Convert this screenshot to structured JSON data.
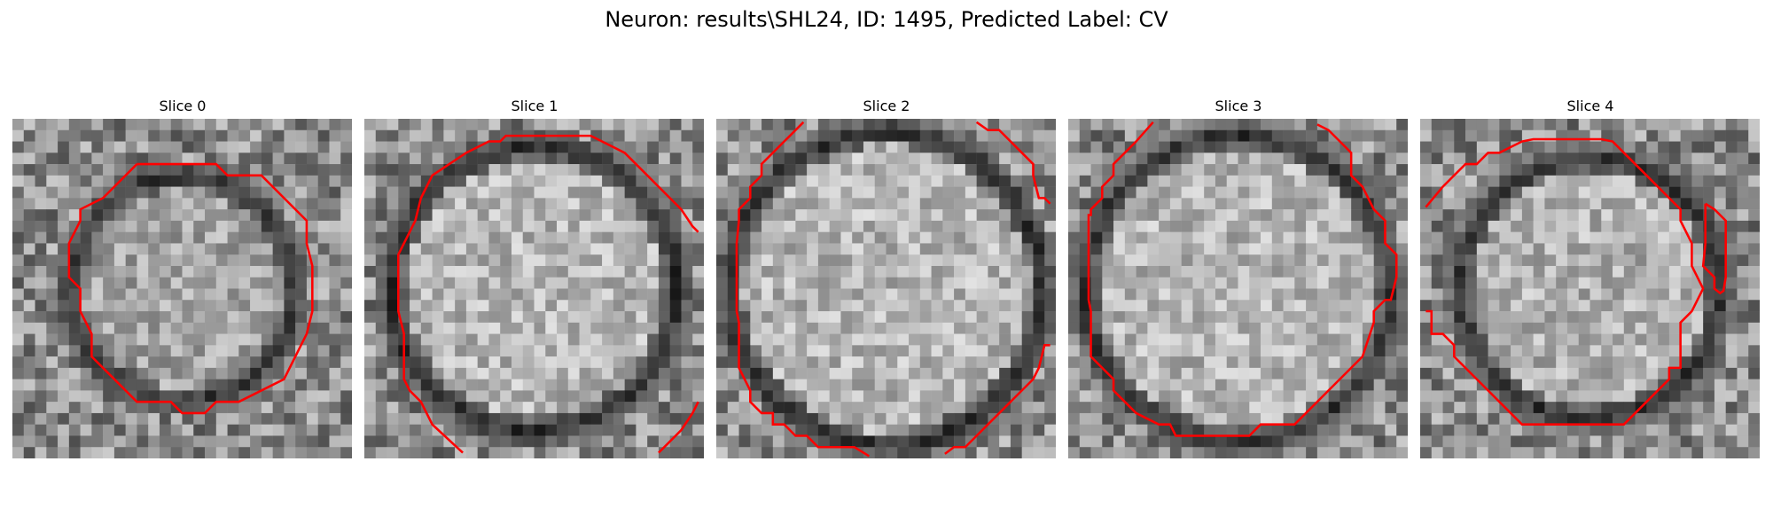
{
  "figure": {
    "title": "Neuron: results\\SHL24, ID: 1495, Predicted Label: CV"
  },
  "colors": {
    "contour": "#ff0000",
    "dark": "#2a2a2a",
    "light": "#f2f2f2"
  },
  "slices": [
    {
      "title": "Slice 0",
      "membrane": 0.8,
      "brightness": 0.55,
      "ring_radius": 0.33
    },
    {
      "title": "Slice 1",
      "membrane": 0.85,
      "brightness": 0.75,
      "ring_radius": 0.42
    },
    {
      "title": "Slice 2",
      "membrane": 0.85,
      "brightness": 0.75,
      "ring_radius": 0.46
    },
    {
      "title": "Slice 3",
      "membrane": 0.8,
      "brightness": 0.75,
      "ring_radius": 0.45
    },
    {
      "title": "Slice 4",
      "membrane": 0.8,
      "brightness": 0.7,
      "ring_radius": 0.38
    }
  ]
}
